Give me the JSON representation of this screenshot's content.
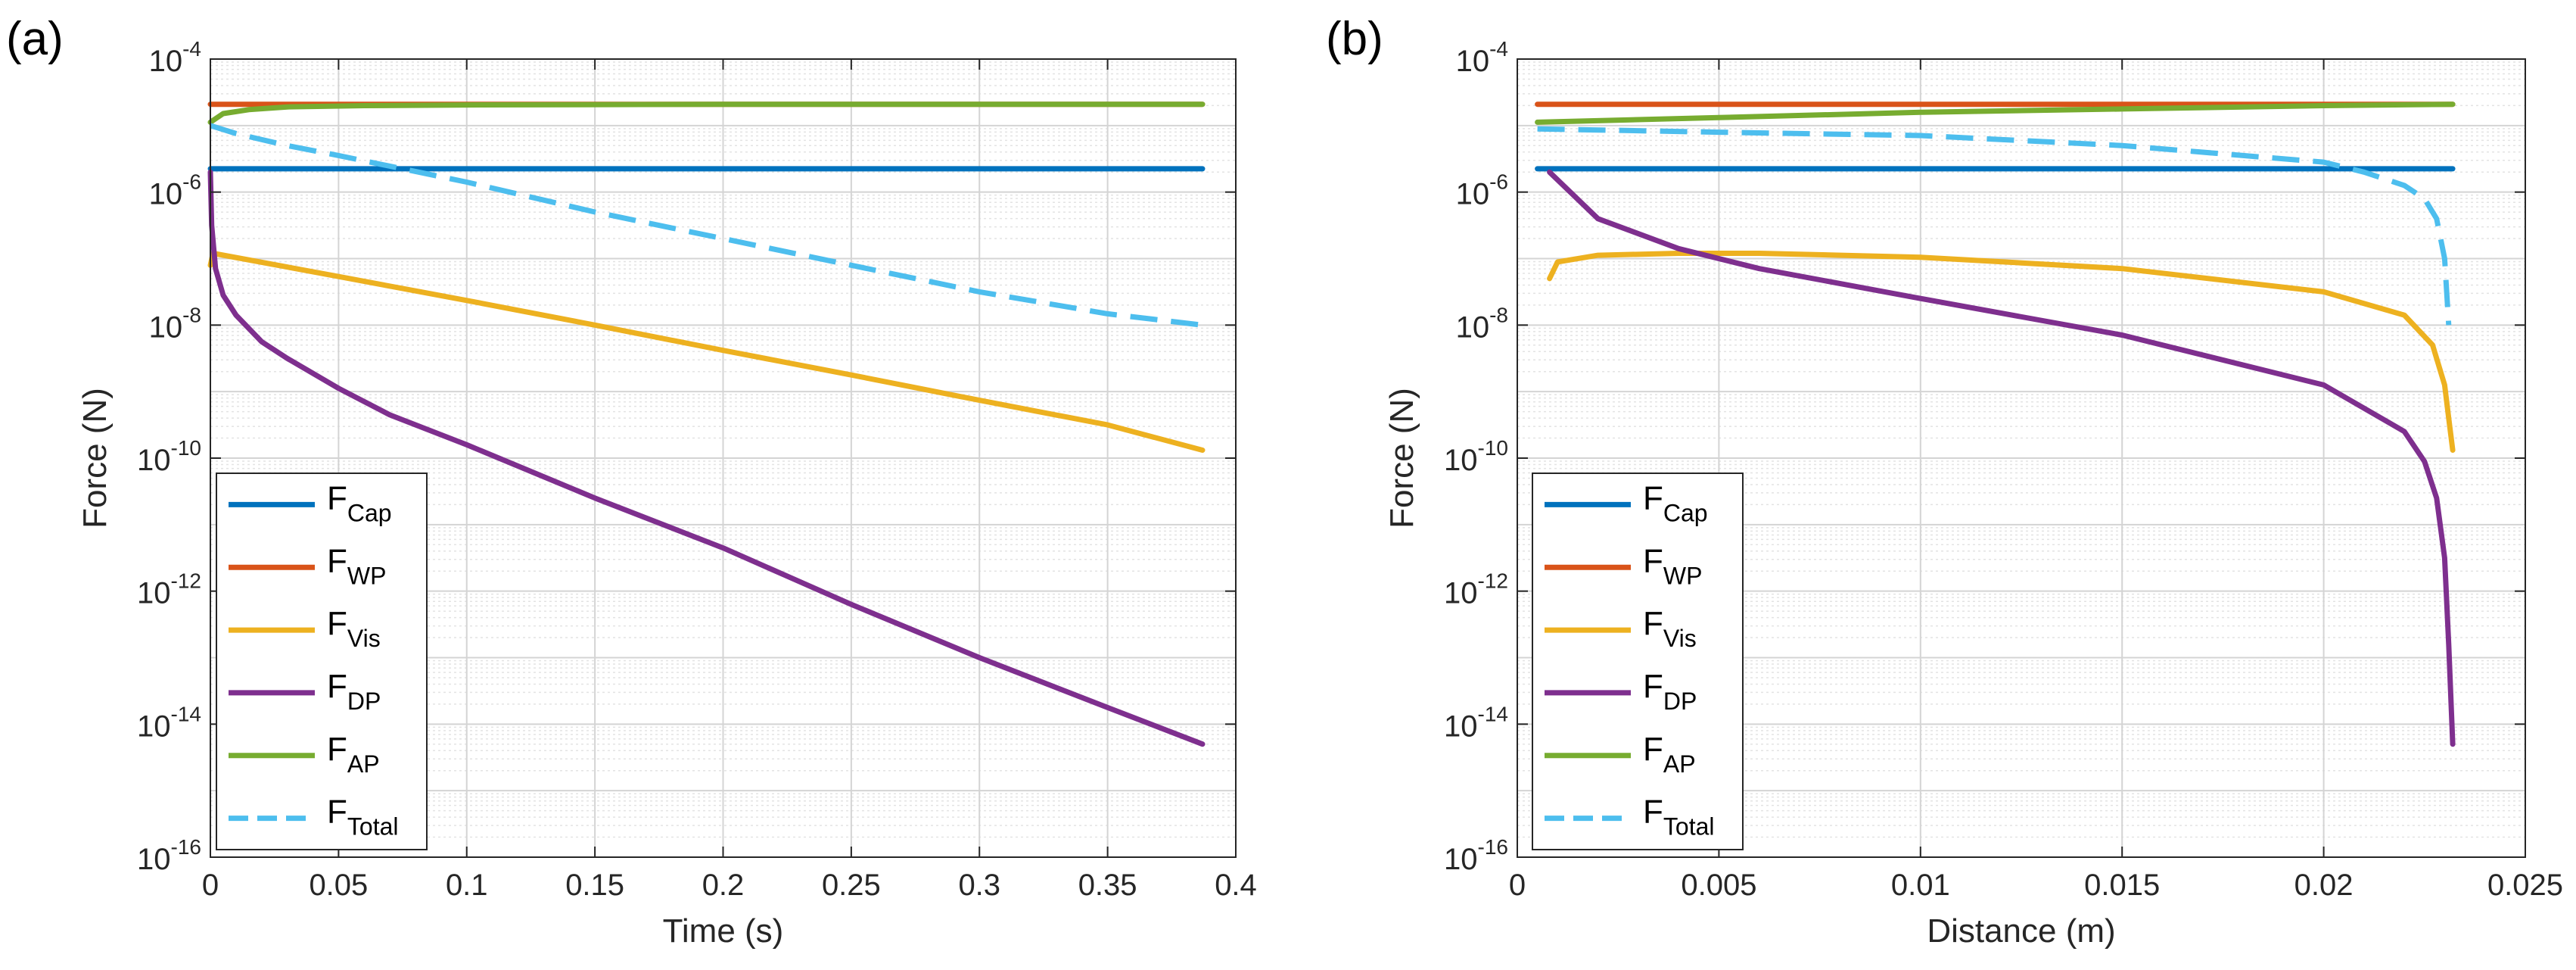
{
  "chart_data": [
    {
      "type": "line",
      "panel_label": "(a)",
      "xlabel": "Time (s)",
      "ylabel": "Force (N)",
      "xlim": [
        0,
        0.4
      ],
      "ylim_log10": [
        -16,
        -4
      ],
      "yscale": "log",
      "grid": true,
      "minor_grid": true,
      "legend_position": "bottom-left",
      "xticks": [
        0,
        0.05,
        0.1,
        0.15,
        0.2,
        0.25,
        0.3,
        0.35,
        0.4
      ],
      "xtick_labels": [
        "0",
        "0.05",
        "0.1",
        "0.15",
        "0.2",
        "0.25",
        "0.3",
        "0.35",
        "0.4"
      ],
      "yticks": [
        {
          "base": "10",
          "exp": "-16"
        },
        {
          "base": "10",
          "exp": "-14"
        },
        {
          "base": "10",
          "exp": "-12"
        },
        {
          "base": "10",
          "exp": "-10"
        },
        {
          "base": "10",
          "exp": "-8"
        },
        {
          "base": "10",
          "exp": "-6"
        },
        {
          "base": "10",
          "exp": "-4"
        }
      ],
      "series": [
        {
          "name": "F",
          "sub": "Cap",
          "color": "#0072BD",
          "dash": false,
          "x": [
            0,
            0.387
          ],
          "log10_y": [
            -5.65,
            -5.65
          ]
        },
        {
          "name": "F",
          "sub": "WP",
          "color": "#D95319",
          "dash": false,
          "x": [
            0,
            0.387
          ],
          "log10_y": [
            -4.68,
            -4.68
          ]
        },
        {
          "name": "F",
          "sub": "Vis",
          "color": "#EDB120",
          "dash": false,
          "x": [
            0,
            0.001,
            0.05,
            0.1,
            0.15,
            0.2,
            0.25,
            0.3,
            0.35,
            0.387
          ],
          "log10_y": [
            -7.1,
            -6.92,
            -7.27,
            -7.63,
            -8.0,
            -8.38,
            -8.75,
            -9.13,
            -9.5,
            -9.88
          ]
        },
        {
          "name": "F",
          "sub": "DP",
          "color": "#7E2F8E",
          "dash": false,
          "x": [
            0,
            0.0005,
            0.002,
            0.005,
            0.01,
            0.02,
            0.03,
            0.05,
            0.07,
            0.1,
            0.15,
            0.2,
            0.25,
            0.3,
            0.35,
            0.387
          ],
          "log10_y": [
            -5.7,
            -6.5,
            -7.15,
            -7.55,
            -7.85,
            -8.25,
            -8.5,
            -8.95,
            -9.35,
            -9.8,
            -10.6,
            -11.35,
            -12.2,
            -13.0,
            -13.75,
            -14.3
          ]
        },
        {
          "name": "F",
          "sub": "AP",
          "color": "#77AC30",
          "dash": false,
          "x": [
            0,
            0.005,
            0.015,
            0.03,
            0.06,
            0.1,
            0.2,
            0.387
          ],
          "log10_y": [
            -4.95,
            -4.82,
            -4.76,
            -4.72,
            -4.7,
            -4.69,
            -4.68,
            -4.68
          ]
        },
        {
          "name": "F",
          "sub": "Total",
          "color": "#4DBEEE",
          "dash": true,
          "x": [
            0,
            0.01,
            0.03,
            0.05,
            0.1,
            0.15,
            0.2,
            0.25,
            0.3,
            0.35,
            0.387
          ],
          "log10_y": [
            -5.0,
            -5.12,
            -5.3,
            -5.45,
            -5.85,
            -6.3,
            -6.7,
            -7.1,
            -7.5,
            -7.83,
            -8.0
          ]
        }
      ]
    },
    {
      "type": "line",
      "panel_label": "(b)",
      "xlabel": "Distance (m)",
      "ylabel": "Force (N)",
      "xlim": [
        0,
        0.025
      ],
      "ylim_log10": [
        -16,
        -4
      ],
      "yscale": "log",
      "grid": true,
      "minor_grid": true,
      "legend_position": "bottom-left",
      "xticks": [
        0,
        0.005,
        0.01,
        0.015,
        0.02,
        0.025
      ],
      "xtick_labels": [
        "0",
        "0.005",
        "0.01",
        "0.015",
        "0.02",
        "0.025"
      ],
      "yticks": [
        {
          "base": "10",
          "exp": "-16"
        },
        {
          "base": "10",
          "exp": "-14"
        },
        {
          "base": "10",
          "exp": "-12"
        },
        {
          "base": "10",
          "exp": "-10"
        },
        {
          "base": "10",
          "exp": "-8"
        },
        {
          "base": "10",
          "exp": "-6"
        },
        {
          "base": "10",
          "exp": "-4"
        }
      ],
      "series": [
        {
          "name": "F",
          "sub": "Cap",
          "color": "#0072BD",
          "dash": false,
          "x": [
            0.0005,
            0.0232
          ],
          "log10_y": [
            -5.65,
            -5.65
          ]
        },
        {
          "name": "F",
          "sub": "WP",
          "color": "#D95319",
          "dash": false,
          "x": [
            0.0005,
            0.0232
          ],
          "log10_y": [
            -4.68,
            -4.68
          ]
        },
        {
          "name": "F",
          "sub": "Vis",
          "color": "#EDB120",
          "dash": false,
          "x": [
            0.0008,
            0.001,
            0.002,
            0.004,
            0.006,
            0.01,
            0.015,
            0.02,
            0.022,
            0.0227,
            0.023,
            0.0231,
            0.0232
          ],
          "log10_y": [
            -7.3,
            -7.05,
            -6.95,
            -6.92,
            -6.92,
            -6.98,
            -7.15,
            -7.5,
            -7.85,
            -8.3,
            -8.9,
            -9.4,
            -9.88
          ]
        },
        {
          "name": "F",
          "sub": "DP",
          "color": "#7E2F8E",
          "dash": false,
          "x": [
            0.0008,
            0.002,
            0.004,
            0.006,
            0.01,
            0.015,
            0.02,
            0.022,
            0.0225,
            0.0228,
            0.023,
            0.0231,
            0.0232
          ],
          "log10_y": [
            -5.7,
            -6.4,
            -6.85,
            -7.15,
            -7.6,
            -8.15,
            -8.9,
            -9.6,
            -10.05,
            -10.6,
            -11.5,
            -12.8,
            -14.3
          ]
        },
        {
          "name": "F",
          "sub": "AP",
          "color": "#77AC30",
          "dash": false,
          "x": [
            0.0005,
            0.005,
            0.01,
            0.015,
            0.02,
            0.0232
          ],
          "log10_y": [
            -4.95,
            -4.88,
            -4.8,
            -4.75,
            -4.7,
            -4.68
          ]
        },
        {
          "name": "F",
          "sub": "Total",
          "color": "#4DBEEE",
          "dash": true,
          "x": [
            0.0005,
            0.005,
            0.01,
            0.015,
            0.018,
            0.02,
            0.021,
            0.022,
            0.0225,
            0.0228,
            0.023,
            0.0231
          ],
          "log10_y": [
            -5.05,
            -5.1,
            -5.15,
            -5.3,
            -5.45,
            -5.55,
            -5.7,
            -5.9,
            -6.1,
            -6.4,
            -7.0,
            -8.0
          ]
        }
      ]
    }
  ]
}
